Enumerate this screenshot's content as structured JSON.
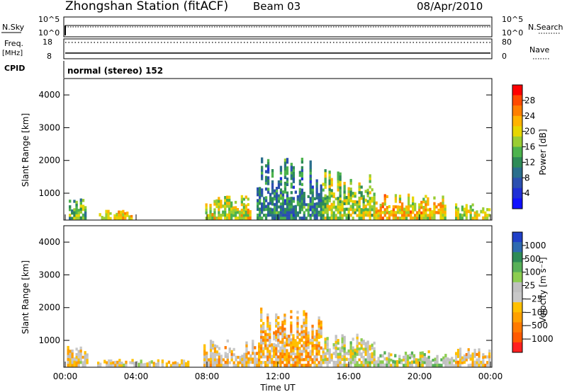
{
  "header": {
    "station": "Zhongshan Station (fitACF)",
    "beam": "Beam 03",
    "date": "08/Apr/2010"
  },
  "top_panels": {
    "nsky_label": "N.Sky",
    "nsky_ticks": [
      "10^5",
      "10^0"
    ],
    "nsearch_ticks": [
      "10^5",
      "10^0"
    ],
    "nsearch_label": "N.Search",
    "freq_label": "Freq.",
    "freq_unit": "[MHz]",
    "freq_ticks": [
      "18",
      "8"
    ],
    "nave_ticks": [
      "80",
      "0"
    ],
    "nave_label": "Nave",
    "cpid_label": "CPID",
    "cpid_value": "normal (stereo) 152"
  },
  "x_axis": {
    "label": "Time UT",
    "ticks": [
      "00:00",
      "04:00",
      "08:00",
      "12:00",
      "16:00",
      "20:00",
      "00:00"
    ]
  },
  "colorbars": {
    "power": {
      "label": "Power [dB]",
      "ticks": [
        "28",
        "24",
        "20",
        "16",
        "12",
        "8",
        "4"
      ],
      "colors": [
        "#ff0000",
        "#ff4a00",
        "#ff7f00",
        "#ffb300",
        "#e6d600",
        "#9acd32",
        "#4db34d",
        "#2e8b57",
        "#2a6e8c",
        "#2b4fb0",
        "#1f2fd6",
        "#1010ff"
      ]
    },
    "velocity": {
      "label": "Velocity [m s⁻¹]",
      "ticks": [
        "1000",
        "500",
        "100",
        "25",
        "−25",
        "−100",
        "−500",
        "−1000"
      ],
      "colors": [
        "#2040c8",
        "#2e6ab0",
        "#2e8b57",
        "#58b058",
        "#8ccd50",
        "#c0c0c0",
        "#c8c8c8",
        "#ffc000",
        "#ffa000",
        "#ff7a00",
        "#ff5a00",
        "#ff2020"
      ]
    }
  },
  "chart_data": [
    {
      "type": "line",
      "title": "N.Sky / N.Search",
      "ylabel_left": "N.Sky",
      "ylabel_right": "N.Search",
      "y_scale": "log",
      "ylim": [
        1,
        100000
      ],
      "series": [
        {
          "name": "N.Sky",
          "style": "solid",
          "x_hours": [
            0,
            24
          ],
          "values": [
            20000,
            20000
          ]
        },
        {
          "name": "N.Search",
          "style": "dotted",
          "x_hours": [
            0,
            24
          ],
          "values": [
            20000,
            20000
          ]
        }
      ]
    },
    {
      "type": "line",
      "title": "Freq. / Nave",
      "ylabel_left": "Freq. [MHz]",
      "ylabel_right": "Nave",
      "ylim_left": [
        8,
        18
      ],
      "ylim_right": [
        0,
        80
      ],
      "series": [
        {
          "name": "Freq.",
          "style": "solid",
          "x_hours": [
            0,
            24
          ],
          "values": [
            10.5,
            10.5
          ]
        },
        {
          "name": "Nave",
          "style": "dotted",
          "x_hours": [
            0,
            24
          ],
          "values": [
            68,
            68
          ]
        }
      ]
    },
    {
      "type": "heatmap",
      "title": "Power",
      "xlabel": "Time UT",
      "ylabel": "Slant Range [km]",
      "x_hours": [
        0,
        24
      ],
      "ylim": [
        180,
        4500
      ],
      "y_ticks": [
        1000,
        2000,
        3000,
        4000
      ],
      "color_scale": {
        "label": "Power [dB]",
        "min": 0,
        "max": 30
      },
      "regions": [
        {
          "t": [
            0.2,
            1.2
          ],
          "r": [
            200,
            850
          ],
          "value": 14
        },
        {
          "t": [
            1.9,
            3.8
          ],
          "r": [
            200,
            500
          ],
          "value": 20
        },
        {
          "t": [
            7.9,
            10.5
          ],
          "r": [
            200,
            950
          ],
          "value": 18
        },
        {
          "t": [
            10.8,
            14.5
          ],
          "r": [
            200,
            2100
          ],
          "value": 10
        },
        {
          "t": [
            14.5,
            17.5
          ],
          "r": [
            200,
            1800
          ],
          "value": 16
        },
        {
          "t": [
            17.5,
            21.5
          ],
          "r": [
            200,
            1000
          ],
          "value": 20
        },
        {
          "t": [
            22.0,
            24.0
          ],
          "r": [
            200,
            700
          ],
          "value": 18
        }
      ]
    },
    {
      "type": "heatmap",
      "title": "Velocity",
      "xlabel": "Time UT",
      "ylabel": "Slant Range [km]",
      "x_hours": [
        0,
        24
      ],
      "ylim": [
        180,
        4500
      ],
      "y_ticks": [
        1000,
        2000,
        3000,
        4000
      ],
      "color_scale": {
        "label": "Velocity [m s⁻¹]",
        "min": -1000,
        "max": 1000
      },
      "regions": [
        {
          "t": [
            0.1,
            1.3
          ],
          "r": [
            200,
            900
          ],
          "value": -150
        },
        {
          "t": [
            1.8,
            7.0
          ],
          "r": [
            200,
            450
          ],
          "value": -120
        },
        {
          "t": [
            7.8,
            11.0
          ],
          "r": [
            200,
            1100
          ],
          "value": -200
        },
        {
          "t": [
            11.0,
            14.5
          ],
          "r": [
            200,
            2100
          ],
          "value": -300
        },
        {
          "t": [
            14.5,
            17.5
          ],
          "r": [
            200,
            1300
          ],
          "value": 0
        },
        {
          "t": [
            17.5,
            22.0
          ],
          "r": [
            200,
            700
          ],
          "value": 80
        },
        {
          "t": [
            22.0,
            24.0
          ],
          "r": [
            200,
            800
          ],
          "value": -200
        }
      ]
    }
  ]
}
